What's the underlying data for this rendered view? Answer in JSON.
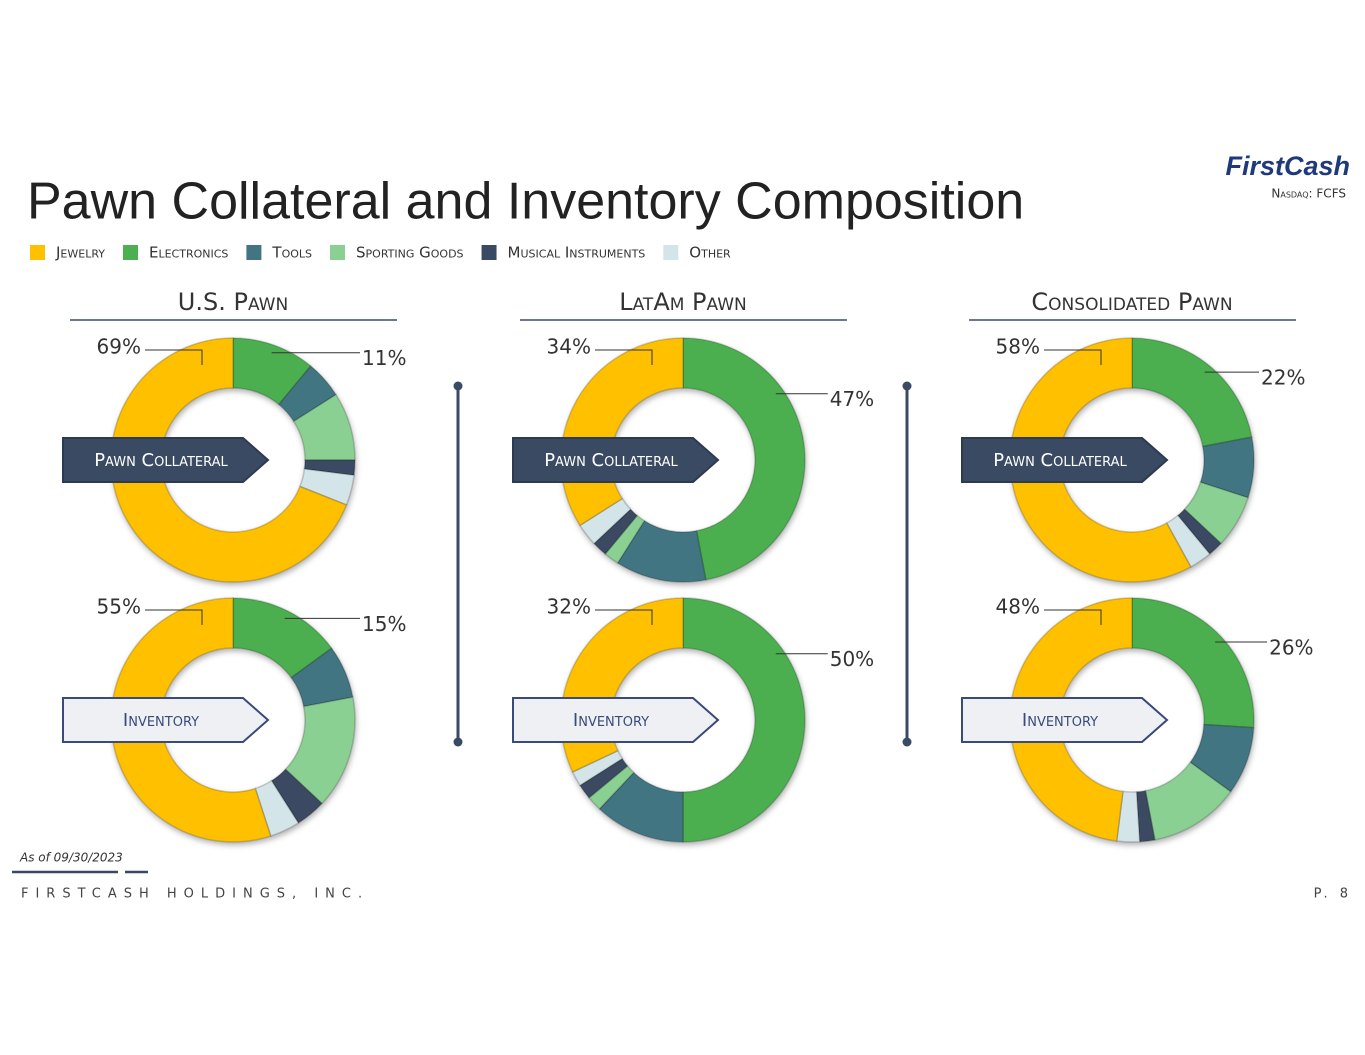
{
  "title": "Pawn Collateral and Inventory Composition",
  "logo": "FirstCash",
  "ticker": "Nasdaq: FCFS",
  "panels": [
    "U.S. Pawn",
    "LatAm Pawn",
    "Consolidated Pawn"
  ],
  "note": "As of 09/30/2023",
  "footer": "FirstCash Holdings, Inc.",
  "page": "P. 8",
  "chart_data": [
    {
      "type": "donut",
      "panel": 0,
      "title": "Pawn Collateral",
      "categories": [
        "Jewelry",
        "Electronics",
        "Tools",
        "Sporting Goods",
        "Musical Instruments",
        "Other"
      ],
      "colors": [
        "#ffc000",
        "#4caf50",
        "#427482",
        "#8bd093",
        "#3a4a63",
        "#d3e5e8"
      ],
      "values": [
        69,
        11,
        5,
        9,
        2,
        4
      ],
      "value_labels": [
        "69%",
        "11%",
        null,
        null,
        null,
        null
      ]
    },
    {
      "type": "donut",
      "panel": 0,
      "title": "Inventory",
      "categories": [
        "Jewelry",
        "Electronics",
        "Tools",
        "Sporting Goods",
        "Musical Instruments",
        "Other"
      ],
      "colors": [
        "#ffc000",
        "#4caf50",
        "#427482",
        "#8bd093",
        "#3a4a63",
        "#d3e5e8"
      ],
      "values": [
        55,
        15,
        7,
        15,
        4,
        4
      ],
      "value_labels": [
        "55%",
        "15%",
        null,
        null,
        null,
        null
      ]
    },
    {
      "type": "donut",
      "panel": 1,
      "title": "Pawn Collateral",
      "categories": [
        "Jewelry",
        "Electronics",
        "Tools",
        "Sporting Goods",
        "Musical Instruments",
        "Other"
      ],
      "colors": [
        "#ffc000",
        "#4caf50",
        "#427482",
        "#8bd093",
        "#3a4a63",
        "#d3e5e8"
      ],
      "values": [
        34,
        47,
        12,
        2,
        2,
        3
      ],
      "value_labels": [
        "34%",
        "47%",
        null,
        null,
        null,
        null
      ]
    },
    {
      "type": "donut",
      "panel": 1,
      "title": "Inventory",
      "categories": [
        "Jewelry",
        "Electronics",
        "Tools",
        "Sporting Goods",
        "Musical Instruments",
        "Other"
      ],
      "colors": [
        "#ffc000",
        "#4caf50",
        "#427482",
        "#8bd093",
        "#3a4a63",
        "#d3e5e8"
      ],
      "values": [
        32,
        50,
        12,
        2,
        2,
        2
      ],
      "value_labels": [
        "32%",
        "50%",
        null,
        null,
        null,
        null
      ]
    },
    {
      "type": "donut",
      "panel": 2,
      "title": "Pawn Collateral",
      "categories": [
        "Jewelry",
        "Electronics",
        "Tools",
        "Sporting Goods",
        "Musical Instruments",
        "Other"
      ],
      "colors": [
        "#ffc000",
        "#4caf50",
        "#427482",
        "#8bd093",
        "#3a4a63",
        "#d3e5e8"
      ],
      "values": [
        58,
        22,
        8,
        7,
        2,
        3
      ],
      "value_labels": [
        "58%",
        "22%",
        null,
        null,
        null,
        null
      ]
    },
    {
      "type": "donut",
      "panel": 2,
      "title": "Inventory",
      "categories": [
        "Jewelry",
        "Electronics",
        "Tools",
        "Sporting Goods",
        "Musical Instruments",
        "Other"
      ],
      "colors": [
        "#ffc000",
        "#4caf50",
        "#427482",
        "#8bd093",
        "#3a4a63",
        "#d3e5e8"
      ],
      "values": [
        48,
        26,
        9,
        12,
        2,
        3
      ],
      "value_labels": [
        "48%",
        "26%",
        null,
        null,
        null,
        null
      ]
    }
  ]
}
